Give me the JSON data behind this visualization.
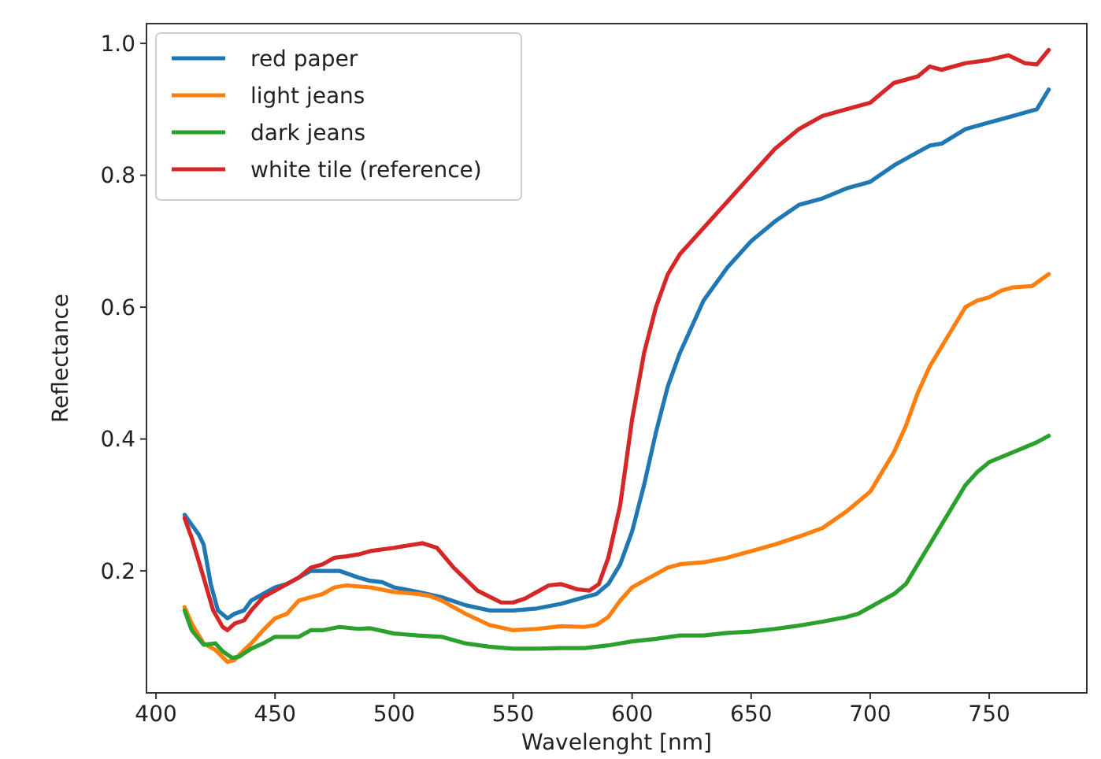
{
  "chart_data": {
    "type": "line",
    "xlabel": "Wavelenght [nm]",
    "ylabel": "Reflectance",
    "xlim": [
      396,
      791
    ],
    "ylim": [
      0.015,
      1.03
    ],
    "xticks": [
      400,
      450,
      500,
      550,
      600,
      650,
      700,
      750
    ],
    "yticks": [
      {
        "value": 0.2,
        "label": "0.2"
      },
      {
        "value": 0.4,
        "label": "0.4"
      },
      {
        "value": 0.6,
        "label": "0.6"
      },
      {
        "value": 0.8,
        "label": "0.8"
      },
      {
        "value": 1.0,
        "label": "1.0"
      }
    ],
    "grid": false,
    "legend": "top left",
    "marker": "none",
    "line_style": "solid",
    "series": [
      {
        "name": "red paper",
        "color": "#1f77b4",
        "x": [
          412,
          415,
          418,
          420,
          423,
          426,
          430,
          433,
          437,
          440,
          445,
          450,
          455,
          460,
          465,
          470,
          477,
          485,
          490,
          495,
          500,
          510,
          520,
          530,
          540,
          550,
          560,
          570,
          580,
          585,
          590,
          595,
          600,
          605,
          610,
          615,
          620,
          625,
          630,
          640,
          650,
          660,
          670,
          680,
          690,
          700,
          710,
          720,
          725,
          730,
          740,
          750,
          760,
          770,
          775
        ],
        "values": [
          0.285,
          0.27,
          0.255,
          0.24,
          0.18,
          0.14,
          0.128,
          0.135,
          0.14,
          0.155,
          0.165,
          0.175,
          0.18,
          0.19,
          0.2,
          0.2,
          0.2,
          0.19,
          0.185,
          0.183,
          0.175,
          0.168,
          0.16,
          0.148,
          0.14,
          0.14,
          0.143,
          0.15,
          0.16,
          0.165,
          0.18,
          0.21,
          0.26,
          0.33,
          0.41,
          0.48,
          0.53,
          0.57,
          0.61,
          0.66,
          0.7,
          0.73,
          0.755,
          0.765,
          0.78,
          0.79,
          0.815,
          0.835,
          0.845,
          0.848,
          0.87,
          0.88,
          0.89,
          0.9,
          0.93
        ]
      },
      {
        "name": "light jeans",
        "color": "#ff7f0e",
        "x": [
          412,
          415,
          420,
          425,
          430,
          433,
          437,
          440,
          445,
          450,
          455,
          460,
          465,
          470,
          475,
          480,
          490,
          500,
          510,
          515,
          520,
          530,
          540,
          550,
          560,
          570,
          580,
          585,
          590,
          595,
          600,
          610,
          615,
          620,
          630,
          640,
          650,
          660,
          670,
          680,
          690,
          700,
          710,
          715,
          720,
          725,
          730,
          735,
          740,
          745,
          750,
          755,
          760,
          768,
          775
        ],
        "values": [
          0.145,
          0.12,
          0.09,
          0.08,
          0.062,
          0.065,
          0.08,
          0.09,
          0.11,
          0.128,
          0.135,
          0.155,
          0.16,
          0.165,
          0.175,
          0.178,
          0.175,
          0.168,
          0.165,
          0.162,
          0.155,
          0.135,
          0.118,
          0.11,
          0.112,
          0.116,
          0.115,
          0.118,
          0.13,
          0.155,
          0.175,
          0.195,
          0.205,
          0.21,
          0.213,
          0.22,
          0.23,
          0.24,
          0.252,
          0.265,
          0.29,
          0.32,
          0.38,
          0.42,
          0.47,
          0.51,
          0.54,
          0.57,
          0.6,
          0.61,
          0.615,
          0.625,
          0.63,
          0.632,
          0.65
        ]
      },
      {
        "name": "dark jeans",
        "color": "#2ca02c",
        "x": [
          412,
          415,
          420,
          425,
          428,
          432,
          435,
          440,
          445,
          450,
          455,
          460,
          465,
          470,
          477,
          485,
          490,
          500,
          510,
          520,
          530,
          540,
          550,
          560,
          570,
          580,
          590,
          600,
          610,
          620,
          630,
          640,
          650,
          660,
          670,
          680,
          690,
          695,
          700,
          710,
          715,
          720,
          725,
          730,
          740,
          745,
          750,
          760,
          770,
          775
        ],
        "values": [
          0.14,
          0.11,
          0.088,
          0.09,
          0.078,
          0.068,
          0.07,
          0.082,
          0.09,
          0.1,
          0.1,
          0.1,
          0.11,
          0.11,
          0.115,
          0.112,
          0.113,
          0.105,
          0.102,
          0.1,
          0.09,
          0.085,
          0.082,
          0.082,
          0.083,
          0.083,
          0.087,
          0.093,
          0.097,
          0.102,
          0.102,
          0.106,
          0.108,
          0.112,
          0.117,
          0.123,
          0.13,
          0.135,
          0.145,
          0.165,
          0.18,
          0.21,
          0.24,
          0.27,
          0.33,
          0.35,
          0.365,
          0.38,
          0.395,
          0.405
        ]
      },
      {
        "name": "white tile (reference)",
        "color": "#d62728",
        "x": [
          412,
          415,
          420,
          424,
          428,
          430,
          433,
          437,
          440,
          445,
          450,
          455,
          460,
          465,
          470,
          475,
          480,
          485,
          490,
          500,
          505,
          512,
          518,
          525,
          535,
          545,
          550,
          555,
          560,
          565,
          570,
          577,
          582,
          586,
          590,
          595,
          600,
          605,
          610,
          615,
          620,
          630,
          640,
          650,
          660,
          670,
          680,
          690,
          700,
          710,
          720,
          725,
          730,
          740,
          750,
          758,
          765,
          770,
          775
        ],
        "values": [
          0.28,
          0.25,
          0.19,
          0.14,
          0.115,
          0.11,
          0.12,
          0.125,
          0.14,
          0.16,
          0.17,
          0.18,
          0.19,
          0.205,
          0.21,
          0.22,
          0.222,
          0.225,
          0.23,
          0.235,
          0.238,
          0.242,
          0.235,
          0.205,
          0.17,
          0.152,
          0.152,
          0.158,
          0.168,
          0.178,
          0.18,
          0.172,
          0.17,
          0.18,
          0.22,
          0.3,
          0.43,
          0.53,
          0.6,
          0.65,
          0.68,
          0.72,
          0.76,
          0.8,
          0.84,
          0.87,
          0.89,
          0.9,
          0.91,
          0.94,
          0.95,
          0.965,
          0.96,
          0.97,
          0.975,
          0.982,
          0.97,
          0.968,
          0.99
        ]
      }
    ]
  }
}
